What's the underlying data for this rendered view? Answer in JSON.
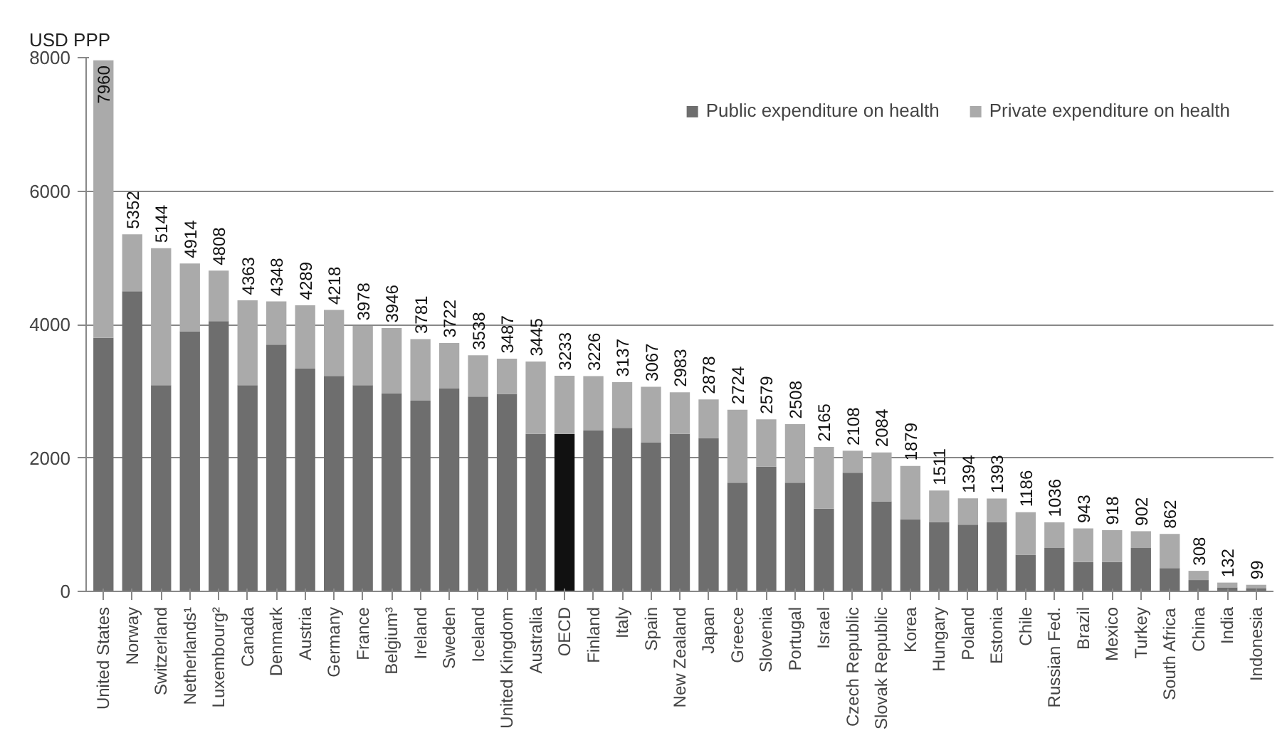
{
  "chart_data": {
    "type": "bar",
    "stacked": true,
    "ylabel": "USD PPP",
    "categories": [
      "United States",
      "Norway",
      "Switzerland",
      "Netherlands¹",
      "Luxembourg²",
      "Canada",
      "Denmark",
      "Austria",
      "Germany",
      "France",
      "Belgium³",
      "Ireland",
      "Sweden",
      "Iceland",
      "United Kingdom",
      "Australia",
      "OECD",
      "Finland",
      "Italy",
      "Spain",
      "New Zealand",
      "Japan",
      "Greece",
      "Slovenia",
      "Portugal",
      "Israel",
      "Czech Republic",
      "Slovak Republic",
      "Korea",
      "Hungary",
      "Poland",
      "Estonia",
      "Chile",
      "Russian Fed.",
      "Brazil",
      "Mexico",
      "Turkey",
      "South Africa",
      "China",
      "India",
      "Indonesia"
    ],
    "series": [
      {
        "name": "Public expenditure on health",
        "color": "#6e6e6e",
        "colors": [
          "#6e6e6e",
          "#6e6e6e",
          "#6e6e6e",
          "#6e6e6e",
          "#6e6e6e",
          "#6e6e6e",
          "#6e6e6e",
          "#6e6e6e",
          "#6e6e6e",
          "#6e6e6e",
          "#6e6e6e",
          "#6e6e6e",
          "#6e6e6e",
          "#6e6e6e",
          "#6e6e6e",
          "#6e6e6e",
          "#111111",
          "#6e6e6e",
          "#6e6e6e",
          "#6e6e6e",
          "#6e6e6e",
          "#6e6e6e",
          "#6e6e6e",
          "#6e6e6e",
          "#6e6e6e",
          "#6e6e6e",
          "#6e6e6e",
          "#6e6e6e",
          "#6e6e6e",
          "#6e6e6e",
          "#6e6e6e",
          "#6e6e6e",
          "#6e6e6e",
          "#6e6e6e",
          "#6e6e6e",
          "#6e6e6e",
          "#6e6e6e",
          "#6e6e6e",
          "#6e6e6e",
          "#6e6e6e",
          "#6e6e6e"
        ],
        "values": [
          3800,
          4500,
          3090,
          3900,
          4050,
          3090,
          3700,
          3340,
          3230,
          3090,
          2970,
          2860,
          3040,
          2920,
          2960,
          2360,
          2360,
          2410,
          2450,
          2230,
          2360,
          2300,
          1630,
          1870,
          1630,
          1240,
          1780,
          1350,
          1080,
          1040,
          1000,
          1040,
          550,
          650,
          440,
          440,
          650,
          350,
          170,
          60,
          50
        ]
      },
      {
        "name": "Private expenditure on health",
        "color": "#aaaaaa",
        "values": [
          4160,
          852,
          2054,
          1014,
          758,
          1273,
          648,
          949,
          988,
          888,
          976,
          921,
          682,
          618,
          527,
          1085,
          873,
          816,
          687,
          837,
          623,
          578,
          1094,
          709,
          878,
          925,
          328,
          734,
          799,
          471,
          394,
          353,
          636,
          386,
          503,
          478,
          252,
          512,
          138,
          72,
          49
        ]
      }
    ],
    "totals": [
      "7960",
      "5352",
      "5144",
      "4914",
      "4808",
      "4363",
      "4348",
      "4289",
      "4218",
      "3978",
      "3946",
      "3781",
      "3722",
      "3538",
      "3487",
      "3445",
      "3233",
      "3226",
      "3137",
      "3067",
      "2983",
      "2878",
      "2724",
      "2579",
      "2508",
      "2165",
      "2108",
      "2084",
      "1879",
      "1511",
      "1394",
      "1393",
      "1186",
      "1036",
      "943",
      "918",
      "902",
      "862",
      "308",
      "132",
      "99"
    ],
    "ylim": [
      0,
      8000
    ],
    "yticks": [
      0,
      2000,
      4000,
      6000,
      8000
    ],
    "grid": "y",
    "legend": "top right"
  }
}
